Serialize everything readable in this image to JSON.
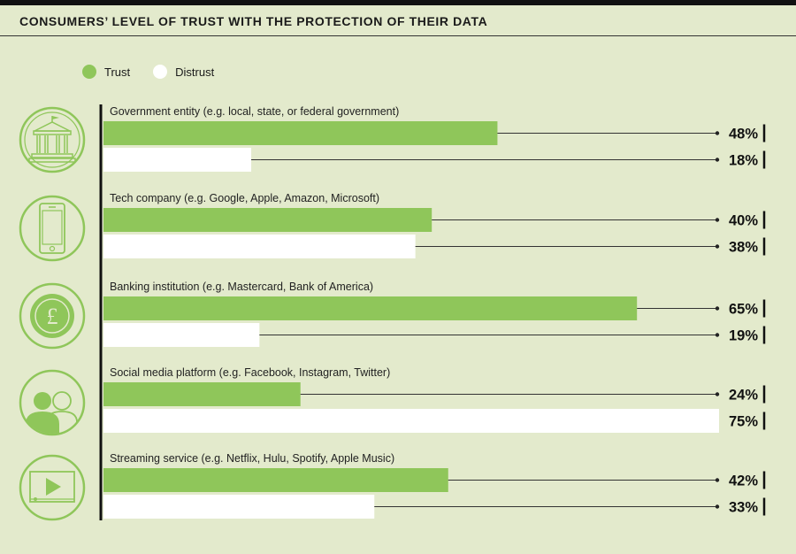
{
  "title": "CONSUMERS’ LEVEL OF TRUST WITH THE PROTECTION OF THEIR DATA",
  "colors": {
    "trust": "#8fc65a",
    "distrust": "#ffffff",
    "background": "#e3eacc",
    "icon": "#8fc65a"
  },
  "chart_data": {
    "type": "bar",
    "orientation": "horizontal",
    "title": "CONSUMERS’ LEVEL OF TRUST WITH THE PROTECTION OF THEIR DATA",
    "categories": [
      "Government entity (e.g. local, state, or federal government)",
      "Tech company (e.g. Google, Apple, Amazon, Microsoft)",
      "Banking institution (e.g. Mastercard, Bank of America)",
      "Social media platform (e.g. Facebook, Instagram, Twitter)",
      "Streaming service (e.g. Netflix, Hulu, Spotify, Apple Music)"
    ],
    "icons": [
      "government-building-icon",
      "smartphone-icon",
      "pound-coin-icon",
      "people-icon",
      "video-player-icon"
    ],
    "series": [
      {
        "name": "Trust",
        "values": [
          48,
          40,
          65,
          24,
          42
        ]
      },
      {
        "name": "Distrust",
        "values": [
          18,
          38,
          19,
          75,
          33
        ]
      }
    ],
    "value_suffix": "%",
    "xlim": [
      0,
      75
    ],
    "legend": "top-left",
    "grid": false
  }
}
